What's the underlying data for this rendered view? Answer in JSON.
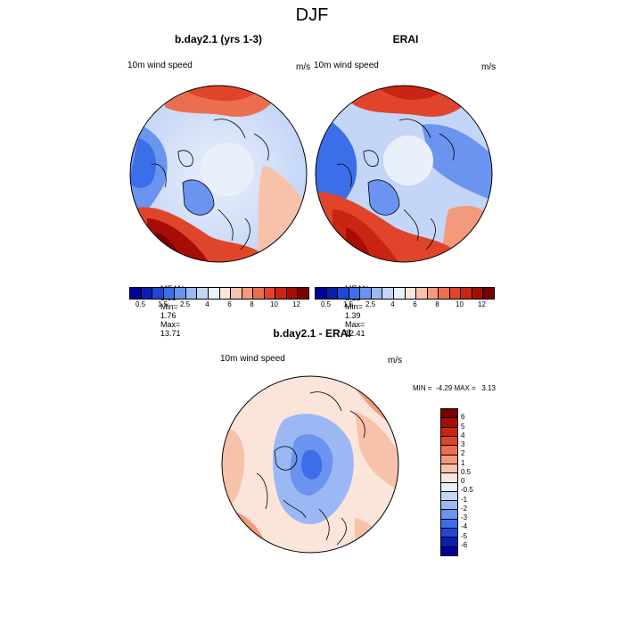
{
  "main_title": "DJF",
  "panels": [
    {
      "title": "b.day2.1 (yrs 1-3)",
      "left_label": "10m wind speed",
      "right_label": "m/s",
      "stats": {
        "mean_label": "MEAN=",
        "mean": "5.88",
        "min_label": "Min=",
        "min": "1.76",
        "max_label": "Max=",
        "max": "13.71"
      }
    },
    {
      "title": "ERAI",
      "left_label": "10m wind speed",
      "right_label": "m/s",
      "stats": {
        "mean_label": "MEAN=",
        "mean": "6.12",
        "min_label": "Min=",
        "min": "1.39",
        "max_label": "Max=",
        "max": "12.41"
      }
    },
    {
      "title": "b.day2.1 - ERAI",
      "left_label": "10m wind speed",
      "right_label": "m/s",
      "minmax": "MIN =  -4.29 MAX =   3.13"
    }
  ],
  "colorbar_horizontal": {
    "colors": [
      "#00009a",
      "#0a1fb0",
      "#1f47d6",
      "#3b6ee8",
      "#6b93f0",
      "#9bb8f5",
      "#c4d6f7",
      "#eaf0fb",
      "#fbe5da",
      "#f8c2aa",
      "#f39a7c",
      "#ec6e50",
      "#e0452b",
      "#c92512",
      "#a80d05",
      "#7a0000"
    ],
    "ticks": [
      "0.5",
      "1.5",
      "2.5",
      "4",
      "6",
      "8",
      "10",
      "12"
    ]
  },
  "colorbar_vertical": {
    "colors": [
      "#7a0000",
      "#a80d05",
      "#c92512",
      "#e0452b",
      "#ec6e50",
      "#f39a7c",
      "#f8c2aa",
      "#fbe5da",
      "#eaf0fb",
      "#c4d6f7",
      "#9bb8f5",
      "#6b93f0",
      "#3b6ee8",
      "#1f47d6",
      "#0a1fb0",
      "#00009a"
    ],
    "ticks": [
      "6",
      "5",
      "4",
      "3",
      "2",
      "1",
      "0.5",
      "0",
      "-0.5",
      "-1",
      "-2",
      "-3",
      "-4",
      "-5",
      "-6"
    ]
  }
}
